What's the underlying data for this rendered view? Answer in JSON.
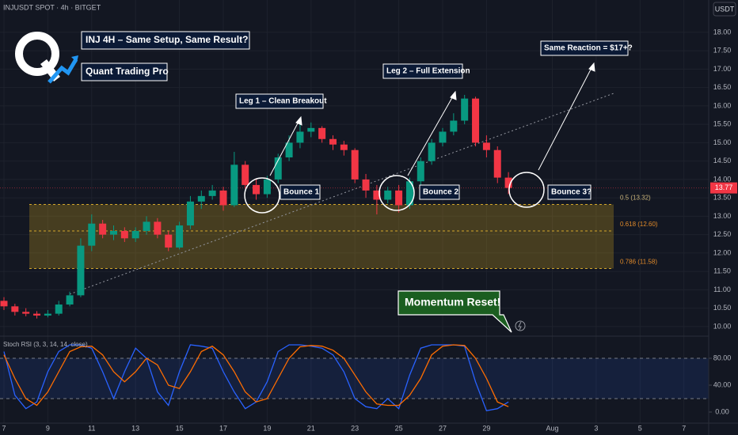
{
  "chart_data": [
    {
      "type": "candlestick",
      "title": "INJUSDT SPOT · 4h · BITGET",
      "currency": "USDT",
      "x": [
        7,
        7.5,
        8,
        8.5,
        9,
        9.5,
        10,
        10.5,
        11,
        11.5,
        12,
        12.5,
        13,
        13.5,
        14,
        14.5,
        15,
        15.5,
        16,
        16.5,
        17,
        17.5,
        18,
        18.5,
        19,
        19.5,
        20,
        20.5,
        21,
        21.5,
        22,
        22.5,
        23,
        23.5,
        24,
        24.5,
        25,
        25.5,
        26,
        26.5,
        27,
        27.5,
        28,
        28.5,
        29,
        29.5,
        30
      ],
      "open": [
        10.7,
        10.55,
        10.4,
        10.35,
        10.3,
        10.35,
        10.6,
        10.85,
        12.2,
        12.8,
        12.5,
        12.6,
        12.4,
        12.6,
        12.85,
        12.5,
        12.15,
        12.75,
        13.4,
        13.55,
        13.7,
        13.3,
        14.4,
        13.85,
        13.6,
        14.0,
        14.6,
        15.0,
        15.3,
        15.4,
        15.1,
        14.95,
        14.8,
        14.0,
        13.7,
        13.45,
        13.7,
        13.3,
        13.95,
        14.5,
        15.0,
        15.3,
        15.6,
        16.2,
        15.0,
        14.8,
        14.05
      ],
      "high": [
        10.8,
        10.62,
        10.5,
        10.42,
        10.45,
        10.7,
        10.95,
        12.4,
        13.05,
        12.9,
        12.75,
        12.7,
        12.7,
        13.0,
        12.95,
        12.6,
        12.85,
        13.55,
        13.7,
        13.85,
        13.8,
        14.75,
        14.5,
        14.0,
        14.1,
        14.7,
        15.2,
        15.5,
        15.55,
        15.45,
        15.2,
        15.05,
        14.85,
        14.15,
        13.85,
        13.8,
        13.85,
        14.05,
        14.6,
        15.1,
        15.4,
        15.8,
        16.3,
        16.25,
        15.2,
        14.9,
        14.2
      ],
      "low": [
        10.45,
        10.3,
        10.28,
        10.22,
        10.25,
        10.3,
        10.55,
        10.8,
        12.05,
        12.4,
        12.35,
        12.3,
        12.3,
        12.5,
        12.4,
        12.05,
        12.1,
        12.65,
        13.2,
        13.45,
        13.15,
        13.25,
        13.75,
        13.45,
        13.5,
        13.9,
        14.5,
        14.85,
        15.15,
        15.0,
        14.8,
        14.65,
        13.9,
        13.5,
        13.05,
        13.35,
        13.1,
        13.2,
        13.85,
        14.4,
        14.9,
        15.2,
        15.5,
        14.9,
        14.6,
        13.9,
        13.6
      ],
      "close": [
        10.55,
        10.4,
        10.35,
        10.3,
        10.35,
        10.6,
        10.85,
        12.2,
        12.8,
        12.5,
        12.6,
        12.4,
        12.6,
        12.85,
        12.5,
        12.15,
        12.75,
        13.4,
        13.55,
        13.7,
        13.3,
        14.4,
        13.85,
        13.6,
        14.0,
        14.6,
        15.0,
        15.3,
        15.4,
        15.1,
        14.95,
        14.8,
        14.0,
        13.7,
        13.45,
        13.7,
        13.3,
        13.95,
        14.5,
        15.0,
        15.3,
        15.6,
        16.2,
        15.0,
        14.8,
        14.05,
        13.77
      ],
      "up_color": "#089981",
      "down_color": "#f23645",
      "last_price": 13.77,
      "xlim": [
        6.82,
        39.13
      ],
      "xticks": [
        7,
        9,
        11,
        13,
        15,
        17,
        19,
        21,
        23,
        25,
        27,
        29,
        {
          "value": 32,
          "label": "Aug"
        },
        {
          "value": 34,
          "label": "3"
        },
        {
          "value": 36,
          "label": "5"
        },
        {
          "value": 38,
          "label": "7"
        }
      ],
      "ylim": [
        9.74,
        18.88
      ],
      "yticks": [
        {
          "value": 10,
          "label": "10.00"
        },
        {
          "value": 10.5,
          "label": "10.50"
        },
        {
          "value": 11,
          "label": "11.00"
        },
        {
          "value": 11.5,
          "label": "11.50"
        },
        {
          "value": 12,
          "label": "12.00"
        },
        {
          "value": 12.5,
          "label": "12.50"
        },
        {
          "value": 13,
          "label": "13.00"
        },
        {
          "value": 13.5,
          "label": "13.50"
        },
        {
          "value": 14,
          "label": "14.00"
        },
        {
          "value": 14.5,
          "label": "14.50"
        },
        {
          "value": 15,
          "label": "15.00"
        },
        {
          "value": 15.5,
          "label": "15.50"
        },
        {
          "value": 16,
          "label": "16.00"
        },
        {
          "value": 16.5,
          "label": "16.50"
        },
        {
          "value": 17,
          "label": "17.00"
        },
        {
          "value": 17.5,
          "label": "17.50"
        },
        {
          "value": 18,
          "label": "18.00"
        }
      ],
      "grid": true,
      "fib_levels": [
        {
          "value": 13.32,
          "label": "0.5 (13.32)"
        },
        {
          "value": 12.6,
          "label": "0.618 (12.60)"
        },
        {
          "value": 11.58,
          "label": "0.786 (11.58)"
        }
      ],
      "annotations": [
        "INJ 4H – Same Setup, Same Result?",
        "Quant Trading Pro",
        "Leg 1 – Clean Breakout",
        "Leg 2 – Full Extension",
        "Same Reaction = $17+?",
        "Bounce 1",
        "Bounce 2",
        "Bounce 3?",
        "Momentum Reset!"
      ]
    },
    {
      "type": "line",
      "title": "Stoch RSI (3, 3, 14, 14, close)",
      "x": [
        7,
        7.5,
        8,
        8.5,
        9,
        9.5,
        10,
        10.5,
        11,
        11.5,
        12,
        12.5,
        13,
        13.5,
        14,
        14.5,
        15,
        15.5,
        16,
        16.5,
        17,
        17.5,
        18,
        18.5,
        19,
        19.5,
        20,
        20.5,
        21,
        21.5,
        22,
        22.5,
        23,
        23.5,
        24,
        24.5,
        25,
        25.5,
        26,
        26.5,
        27,
        27.5,
        28,
        28.5,
        29,
        29.5,
        30
      ],
      "series": [
        {
          "color": "#2962ff",
          "values": [
            90,
            25,
            5,
            15,
            60,
            90,
            100,
            100,
            95,
            60,
            20,
            60,
            95,
            80,
            30,
            10,
            60,
            100,
            98,
            95,
            60,
            30,
            5,
            15,
            45,
            90,
            100,
            100,
            98,
            95,
            85,
            60,
            20,
            8,
            5,
            20,
            5,
            55,
            95,
            100,
            100,
            100,
            98,
            45,
            2,
            5,
            15
          ]
        },
        {
          "color": "#ff6d00",
          "values": [
            85,
            50,
            20,
            10,
            30,
            60,
            90,
            97,
            98,
            85,
            60,
            45,
            60,
            80,
            70,
            40,
            35,
            60,
            90,
            98,
            85,
            60,
            30,
            15,
            20,
            50,
            80,
            97,
            99,
            98,
            92,
            80,
            55,
            30,
            12,
            10,
            10,
            25,
            50,
            85,
            98,
            100,
            99,
            80,
            50,
            15,
            8
          ]
        }
      ],
      "band": [
        20,
        80
      ],
      "ylim": [
        -16.5,
        109.4
      ],
      "yticks": [
        {
          "value": 80,
          "label": "80.00"
        },
        {
          "value": 40,
          "label": "40.00"
        },
        {
          "value": 0,
          "label": "0.00"
        }
      ]
    }
  ]
}
